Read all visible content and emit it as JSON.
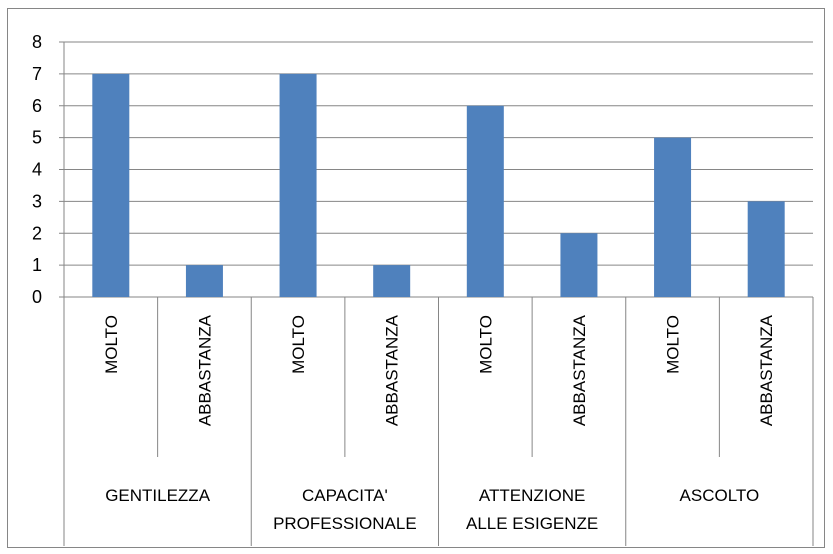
{
  "chart_data": {
    "type": "bar",
    "title": "",
    "xlabel": "",
    "ylabel": "",
    "ylim": [
      0,
      8
    ],
    "yticks": [
      0,
      1,
      2,
      3,
      4,
      5,
      6,
      7,
      8
    ],
    "grid": true,
    "legend": "none",
    "bar_color": "#4F81BD",
    "groups": [
      {
        "label": "GENTILEZZA",
        "label_lines": [
          "GENTILEZZA"
        ],
        "categories": [
          "MOLTO",
          "ABBASTANZA"
        ],
        "values": [
          7,
          1
        ]
      },
      {
        "label": "CAPACITA' PROFESSIONALE",
        "label_lines": [
          "CAPACITA'",
          "PROFESSIONALE"
        ],
        "categories": [
          "MOLTO",
          "ABBASTANZA"
        ],
        "values": [
          7,
          1
        ]
      },
      {
        "label": "ATTENZIONE ALLE ESIGENZE",
        "label_lines": [
          "ATTENZIONE",
          "ALLE ESIGENZE"
        ],
        "categories": [
          "MOLTO",
          "ABBASTANZA"
        ],
        "values": [
          6,
          2
        ]
      },
      {
        "label": "ASCOLTO",
        "label_lines": [
          "ASCOLTO"
        ],
        "categories": [
          "MOLTO",
          "ABBASTANZA"
        ],
        "values": [
          5,
          3
        ]
      }
    ]
  }
}
